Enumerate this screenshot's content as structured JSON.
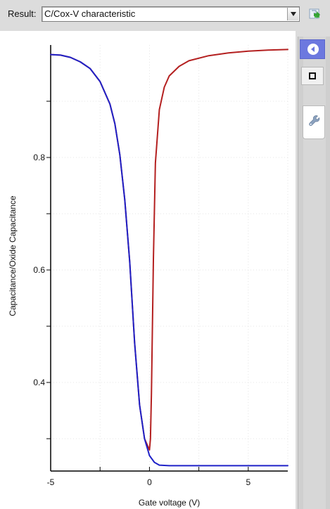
{
  "toolbar": {
    "result_label": "Result:",
    "result_value": "C/Cox-V characteristic"
  },
  "icons": {
    "refresh": "refresh-icon",
    "back": "back-icon",
    "stop": "stop-icon",
    "settings": "wrench-icon",
    "dropdown": "chevron-down-icon"
  },
  "chart_data": {
    "type": "line",
    "title": "",
    "xlabel": "Gate voltage (V)",
    "ylabel": "Capacitance/Oxide Capacitance",
    "xlim": [
      -5,
      7
    ],
    "ylim": [
      0.25,
      1.0
    ],
    "xticks": [
      -5,
      0,
      5
    ],
    "yticks": [
      0.4,
      0.6,
      0.8
    ],
    "grid": true,
    "legend": "none",
    "colors": {
      "high_frequency": "#1f22c8",
      "low_frequency": "#b42020",
      "grid": "#e4e4e4",
      "axis": "#000000"
    },
    "series": [
      {
        "name": "",
        "color": "#1f22c8",
        "x": [
          -5.0,
          -4.5,
          -4.0,
          -3.5,
          -3.0,
          -2.5,
          -2.0,
          -1.75,
          -1.5,
          -1.25,
          -1.0,
          -0.75,
          -0.5,
          -0.25,
          0.0,
          0.25,
          0.5,
          1.0,
          2.0,
          3.0,
          4.0,
          5.0,
          6.0,
          7.0
        ],
        "y": [
          0.983,
          0.982,
          0.978,
          0.97,
          0.958,
          0.935,
          0.895,
          0.86,
          0.805,
          0.725,
          0.615,
          0.47,
          0.36,
          0.3,
          0.27,
          0.258,
          0.253,
          0.252,
          0.252,
          0.252,
          0.252,
          0.252,
          0.252,
          0.252
        ]
      },
      {
        "name": "",
        "color": "#b42020",
        "x": [
          -5.0,
          -4.5,
          -4.0,
          -3.5,
          -3.0,
          -2.5,
          -2.0,
          -1.75,
          -1.5,
          -1.25,
          -1.0,
          -0.75,
          -0.5,
          -0.25,
          0.0,
          0.05,
          0.1,
          0.2,
          0.3,
          0.5,
          0.75,
          1.0,
          1.5,
          2.0,
          3.0,
          4.0,
          5.0,
          6.0,
          7.0
        ],
        "y": [
          0.983,
          0.982,
          0.978,
          0.97,
          0.958,
          0.935,
          0.895,
          0.86,
          0.805,
          0.725,
          0.615,
          0.47,
          0.36,
          0.3,
          0.28,
          0.3,
          0.38,
          0.62,
          0.79,
          0.885,
          0.925,
          0.945,
          0.962,
          0.972,
          0.981,
          0.986,
          0.989,
          0.991,
          0.992
        ]
      }
    ]
  }
}
